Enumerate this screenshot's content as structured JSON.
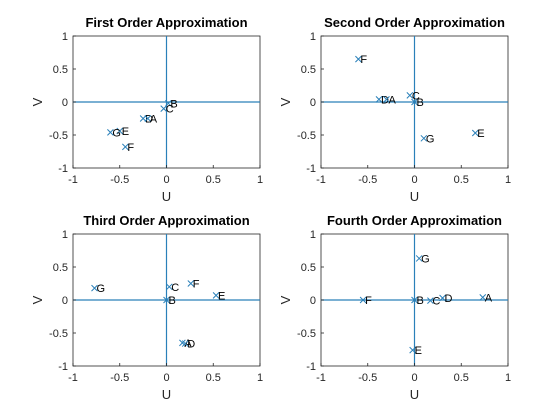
{
  "chart_data": [
    {
      "type": "scatter",
      "title": "First Order Approximation",
      "xlabel": "U",
      "ylabel": "V",
      "xlim": [
        -1,
        1
      ],
      "ylim": [
        -1,
        1
      ],
      "xticks": [
        "-1",
        "-0.5",
        "0",
        "0.5",
        "1"
      ],
      "yticks": [
        "1",
        "0.5",
        "0",
        "-0.5",
        "-1"
      ],
      "ref_lines": {
        "x": 0,
        "y": 0
      },
      "marker": "x",
      "color": "#2a80b9",
      "points": [
        {
          "label": "B",
          "x": 0.02,
          "y": -0.02
        },
        {
          "label": "C",
          "x": -0.03,
          "y": -0.1
        },
        {
          "label": "D",
          "x": -0.25,
          "y": -0.25
        },
        {
          "label": "A",
          "x": -0.2,
          "y": -0.25
        },
        {
          "label": "E",
          "x": -0.5,
          "y": -0.44
        },
        {
          "label": "G",
          "x": -0.6,
          "y": -0.46
        },
        {
          "label": "F",
          "x": -0.44,
          "y": -0.68
        }
      ]
    },
    {
      "type": "scatter",
      "title": "Second Order Approximation",
      "xlabel": "U",
      "ylabel": "V",
      "xlim": [
        -1,
        1
      ],
      "ylim": [
        -1,
        1
      ],
      "xticks": [
        "-1",
        "-0.5",
        "0",
        "0.5",
        "1"
      ],
      "yticks": [
        "1",
        "0.5",
        "0",
        "-0.5",
        "-1"
      ],
      "ref_lines": {
        "x": 0,
        "y": 0
      },
      "marker": "x",
      "color": "#2a80b9",
      "points": [
        {
          "label": "F",
          "x": -0.6,
          "y": 0.65
        },
        {
          "label": "C",
          "x": -0.05,
          "y": 0.1
        },
        {
          "label": "D",
          "x": -0.38,
          "y": 0.04
        },
        {
          "label": "A",
          "x": -0.3,
          "y": 0.04
        },
        {
          "label": "B",
          "x": 0.0,
          "y": 0.0
        },
        {
          "label": "G",
          "x": 0.1,
          "y": -0.55
        },
        {
          "label": "E",
          "x": 0.65,
          "y": -0.47
        }
      ]
    },
    {
      "type": "scatter",
      "title": "Third Order Approximation",
      "xlabel": "U",
      "ylabel": "V",
      "xlim": [
        -1,
        1
      ],
      "ylim": [
        -1,
        1
      ],
      "xticks": [
        "-1",
        "-0.5",
        "0",
        "0.5",
        "1"
      ],
      "yticks": [
        "1",
        "0.5",
        "0",
        "-0.5",
        "-1"
      ],
      "ref_lines": {
        "x": 0,
        "y": 0
      },
      "marker": "x",
      "color": "#2a80b9",
      "points": [
        {
          "label": "G",
          "x": -0.77,
          "y": 0.18
        },
        {
          "label": "C",
          "x": 0.03,
          "y": 0.2
        },
        {
          "label": "F",
          "x": 0.26,
          "y": 0.25
        },
        {
          "label": "E",
          "x": 0.53,
          "y": 0.07
        },
        {
          "label": "B",
          "x": 0.0,
          "y": 0.0
        },
        {
          "label": "A",
          "x": 0.17,
          "y": -0.65
        },
        {
          "label": "D",
          "x": 0.2,
          "y": -0.66
        }
      ]
    },
    {
      "type": "scatter",
      "title": "Fourth Order Approximation",
      "xlabel": "U",
      "ylabel": "V",
      "xlim": [
        -1,
        1
      ],
      "ylim": [
        -1,
        1
      ],
      "xticks": [
        "-1",
        "-0.5",
        "0",
        "0.5",
        "1"
      ],
      "yticks": [
        "1",
        "0.5",
        "0",
        "-0.5",
        "-1"
      ],
      "ref_lines": {
        "x": 0,
        "y": 0
      },
      "marker": "x",
      "color": "#2a80b9",
      "points": [
        {
          "label": "G",
          "x": 0.05,
          "y": 0.63
        },
        {
          "label": "F",
          "x": -0.55,
          "y": 0.0
        },
        {
          "label": "B",
          "x": 0.0,
          "y": 0.0
        },
        {
          "label": "C",
          "x": 0.17,
          "y": -0.01
        },
        {
          "label": "D",
          "x": 0.3,
          "y": 0.03
        },
        {
          "label": "A",
          "x": 0.73,
          "y": 0.04
        },
        {
          "label": "E",
          "x": -0.02,
          "y": -0.76
        }
      ]
    }
  ]
}
